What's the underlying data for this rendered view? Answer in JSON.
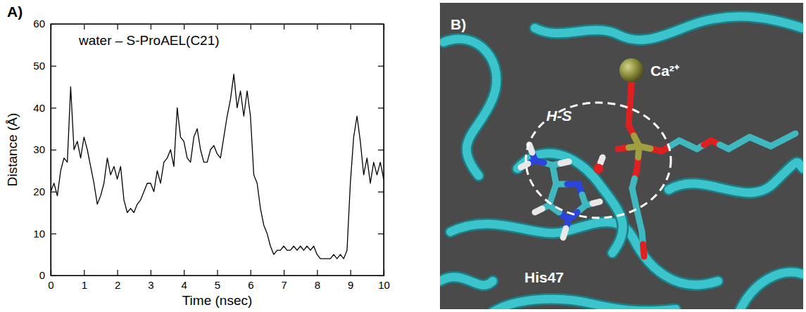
{
  "chart_data": {
    "type": "line",
    "title": "water – S-ProAEL(C21)",
    "annotations": [
      "A)"
    ],
    "x_label": "Time (nsec)",
    "y_label": "Distance (Å)",
    "xlim": [
      0,
      10
    ],
    "ylim": [
      0,
      60
    ],
    "xticks": [
      0,
      1,
      2,
      3,
      4,
      5,
      6,
      7,
      8,
      9,
      10
    ],
    "yticks": [
      0,
      10,
      20,
      30,
      40,
      50,
      60
    ],
    "x": [
      0,
      0.1,
      0.2,
      0.3,
      0.4,
      0.5,
      0.6,
      0.7,
      0.8,
      0.9,
      1,
      1.1,
      1.2,
      1.3,
      1.4,
      1.5,
      1.6,
      1.7,
      1.8,
      1.9,
      2,
      2.1,
      2.2,
      2.3,
      2.4,
      2.5,
      2.6,
      2.7,
      2.8,
      2.9,
      3,
      3.1,
      3.2,
      3.3,
      3.4,
      3.5,
      3.6,
      3.7,
      3.8,
      3.9,
      4,
      4.1,
      4.2,
      4.3,
      4.4,
      4.5,
      4.6,
      4.7,
      4.8,
      4.9,
      5,
      5.1,
      5.2,
      5.3,
      5.4,
      5.5,
      5.6,
      5.7,
      5.8,
      5.9,
      6,
      6.1,
      6.2,
      6.3,
      6.4,
      6.5,
      6.6,
      6.7,
      6.8,
      6.9,
      7,
      7.1,
      7.2,
      7.3,
      7.4,
      7.5,
      7.6,
      7.7,
      7.8,
      7.9,
      8,
      8.1,
      8.2,
      8.3,
      8.4,
      8.5,
      8.6,
      8.7,
      8.8,
      8.9,
      9,
      9.1,
      9.2,
      9.3,
      9.4,
      9.5,
      9.6,
      9.7,
      9.8,
      9.9,
      10
    ],
    "series": [
      {
        "color": "#000000",
        "values": [
          20,
          22,
          19,
          25,
          28,
          27,
          45,
          30,
          32,
          28,
          33,
          30,
          26,
          22,
          17,
          19,
          22,
          28,
          24,
          26,
          23,
          26,
          18,
          15,
          16,
          15,
          17,
          18,
          20,
          22,
          22,
          20,
          25,
          22,
          27,
          28,
          30,
          26,
          40,
          33,
          32,
          28,
          27,
          33,
          35,
          30,
          27,
          27,
          30,
          31,
          29,
          28,
          33,
          38,
          42,
          48,
          40,
          44,
          38,
          44,
          38,
          24,
          22,
          16,
          12,
          10,
          7,
          5,
          6,
          6,
          7,
          6,
          6,
          7,
          6,
          7,
          6,
          7,
          6,
          7,
          5,
          4,
          4,
          4,
          4,
          5,
          4,
          5,
          4,
          6,
          22,
          33,
          38,
          32,
          24,
          28,
          22,
          27,
          24,
          27,
          23
        ]
      }
    ]
  },
  "panel_b": {
    "label": "B)",
    "labels": {
      "calcium": "Ca²⁺",
      "selection": "H-S",
      "residue": "His47"
    }
  }
}
